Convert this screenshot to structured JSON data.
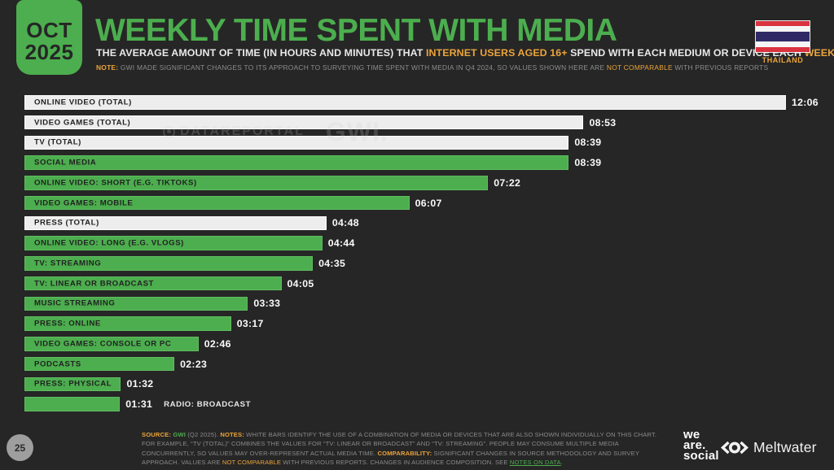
{
  "colors": {
    "background": "#262626",
    "green": "#4cae4e",
    "orange": "#eca43a",
    "bar_white": "#ededed",
    "value_text": "#fafafa",
    "page_circle": "#9e9e9e"
  },
  "header": {
    "date_line1": "OCT",
    "date_line2": "2025",
    "title": "WEEKLY TIME SPENT WITH MEDIA",
    "subtitle_segments": [
      {
        "text": "THE AVERAGE AMOUNT OF TIME (IN HOURS AND MINUTES) THAT "
      },
      {
        "text": "INTERNET USERS AGED 16+",
        "cls": "orange"
      },
      {
        "text": " SPEND WITH EACH MEDIUM OR DEVICE EACH "
      },
      {
        "text": "WEEK",
        "cls": "orange"
      }
    ],
    "note_segments": [
      {
        "text": "NOTE:",
        "cls": "orange-bold"
      },
      {
        "text": " GWI MADE SIGNIFICANT CHANGES TO ITS APPROACH TO SURVEYING TIME SPENT WITH MEDIA IN Q4 2024, SO VALUES SHOWN HERE ARE "
      },
      {
        "text": "NOT COMPARABLE",
        "cls": "orange"
      },
      {
        "text": " WITH PREVIOUS REPORTS"
      }
    ],
    "country_label": "THAILAND"
  },
  "watermark": {
    "brand": "DATAREPORTAL",
    "partner": "GWI."
  },
  "chart_data": {
    "type": "bar",
    "orientation": "horizontal",
    "title": "WEEKLY TIME SPENT WITH MEDIA",
    "unit": "hours:minutes per week",
    "x_axis_max_minutes": 726,
    "grid": false,
    "legend": "none (white bars = combined totals, green bars = individual media)",
    "rows": [
      {
        "label": "ONLINE VIDEO (TOTAL)",
        "value": "12:06",
        "minutes": 726,
        "style": "total",
        "label_outside": false
      },
      {
        "label": "VIDEO GAMES (TOTAL)",
        "value": "08:53",
        "minutes": 533,
        "style": "total",
        "label_outside": false
      },
      {
        "label": "TV (TOTAL)",
        "value": "08:39",
        "minutes": 519,
        "style": "total",
        "label_outside": false
      },
      {
        "label": "SOCIAL MEDIA",
        "value": "08:39",
        "minutes": 519,
        "style": "single",
        "label_outside": false
      },
      {
        "label": "ONLINE VIDEO: SHORT (E.G. TIKTOKS)",
        "value": "07:22",
        "minutes": 442,
        "style": "single",
        "label_outside": false
      },
      {
        "label": "VIDEO GAMES: MOBILE",
        "value": "06:07",
        "minutes": 367,
        "style": "single",
        "label_outside": false
      },
      {
        "label": "PRESS (TOTAL)",
        "value": "04:48",
        "minutes": 288,
        "style": "total",
        "label_outside": false
      },
      {
        "label": "ONLINE VIDEO: LONG (E.G. VLOGS)",
        "value": "04:44",
        "minutes": 284,
        "style": "single",
        "label_outside": false
      },
      {
        "label": "TV: STREAMING",
        "value": "04:35",
        "minutes": 275,
        "style": "single",
        "label_outside": false
      },
      {
        "label": "TV: LINEAR OR BROADCAST",
        "value": "04:05",
        "minutes": 245,
        "style": "single",
        "label_outside": false
      },
      {
        "label": "MUSIC STREAMING",
        "value": "03:33",
        "minutes": 213,
        "style": "single",
        "label_outside": false
      },
      {
        "label": "PRESS: ONLINE",
        "value": "03:17",
        "minutes": 197,
        "style": "single",
        "label_outside": false
      },
      {
        "label": "VIDEO GAMES: CONSOLE OR PC",
        "value": "02:46",
        "minutes": 166,
        "style": "single",
        "label_outside": false
      },
      {
        "label": "PODCASTS",
        "value": "02:23",
        "minutes": 143,
        "style": "single",
        "label_outside": false
      },
      {
        "label": "PRESS: PHYSICAL",
        "value": "01:32",
        "minutes": 92,
        "style": "single",
        "label_outside": false
      },
      {
        "label": "RADIO: BROADCAST",
        "value": "01:31",
        "minutes": 91,
        "style": "single",
        "label_outside": true
      }
    ]
  },
  "footer": {
    "page_number": "25",
    "notes_segments": [
      {
        "text": "SOURCE:",
        "cls": "orange-bold"
      },
      {
        "text": " "
      },
      {
        "text": "GWI",
        "cls": "green"
      },
      {
        "text": " (Q2 2025). "
      },
      {
        "text": "NOTES:",
        "cls": "orange-bold"
      },
      {
        "text": " WHITE BARS IDENTIFY THE USE OF A COMBINATION OF MEDIA OR DEVICES THAT ARE ALSO SHOWN INDIVIDUALLY ON THIS CHART. FOR EXAMPLE, “TV (TOTAL)” COMBINES THE VALUES FOR “TV: LINEAR OR BROADCAST” AND “TV: STREAMING”. PEOPLE MAY CONSUME MULTIPLE MEDIA CONCURRENTLY, SO VALUES MAY OVER-REPRESENT ACTUAL MEDIA TIME. "
      },
      {
        "text": "COMPARABILITY:",
        "cls": "orange-bold"
      },
      {
        "text": " SIGNIFICANT CHANGES IN SOURCE METHODOLOGY AND SURVEY APPROACH. VALUES ARE "
      },
      {
        "text": "NOT COMPARABLE",
        "cls": "orange"
      },
      {
        "text": " WITH PREVIOUS REPORTS. CHANGES IN AUDIENCE COMPOSITION. SEE "
      },
      {
        "text": "NOTES ON DATA",
        "cls": "green-link",
        "name": "notes-on-data-link",
        "interactable": true
      },
      {
        "text": "."
      }
    ],
    "was_logo_lines": [
      "we",
      "are.",
      "social"
    ],
    "meltwater_label": "Meltwater"
  }
}
